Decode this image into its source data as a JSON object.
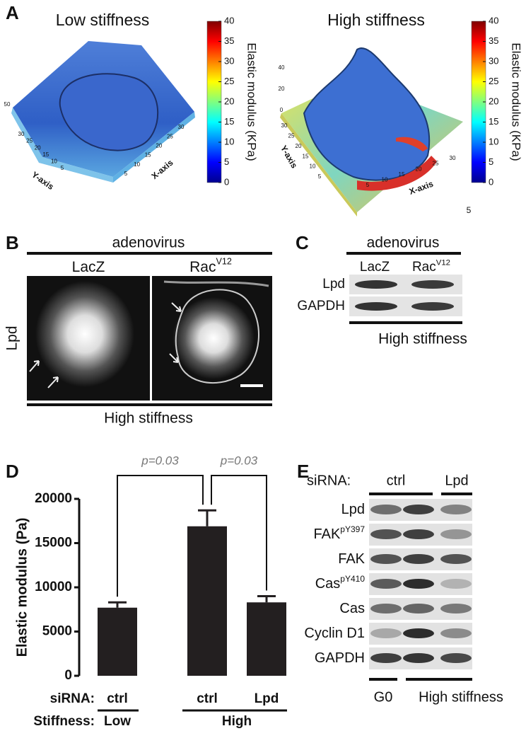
{
  "panel_a": {
    "label": "A",
    "left": {
      "title": "Low stiffness",
      "z_ticks": [
        50
      ],
      "y_ticks": [
        30,
        25,
        20,
        15,
        10,
        5
      ],
      "x_ticks": [
        30,
        25,
        20,
        15,
        10,
        5
      ],
      "y_axis": "Y-axis",
      "x_axis": "X-axis"
    },
    "right": {
      "title": "High stiffness",
      "z_ticks": [
        40,
        20,
        0
      ],
      "y_ticks": [
        30,
        25,
        20,
        15,
        10,
        5
      ],
      "x_ticks": [
        5,
        10,
        15,
        20,
        25,
        30
      ],
      "y_axis": "Y-axis",
      "x_axis": "X-axis"
    },
    "colorbar": {
      "label": "Elastic modulus (KPa)",
      "lim": [
        0,
        40
      ],
      "ticks": [
        0,
        5,
        10,
        15,
        20,
        25,
        30,
        35,
        40
      ]
    },
    "note": "5"
  },
  "panel_b": {
    "label": "B",
    "header": "adenovirus",
    "columns": [
      {
        "text": "LacZ"
      },
      {
        "text": "Rac",
        "sup": "V12"
      }
    ],
    "row_label": "Lpd",
    "footer": "High stiffness"
  },
  "panel_c": {
    "label": "C",
    "header": "adenovirus",
    "columns": [
      {
        "text": "LacZ"
      },
      {
        "text": "Rac",
        "sup": "V12"
      }
    ],
    "rows": [
      "Lpd",
      "GAPDH"
    ],
    "footer": "High stiffness"
  },
  "chart_data": {
    "type": "bar",
    "label": "D",
    "ylabel": "Elastic modulus (Pa)",
    "categories": [
      "ctrl",
      "ctrl",
      "Lpd"
    ],
    "category_label": "siRNA:",
    "groups": {
      "label": "Stiffness:",
      "names": [
        "Low",
        "High"
      ]
    },
    "values": [
      7700,
      16900,
      8300
    ],
    "errors": [
      600,
      1800,
      700
    ],
    "color": "#231f20",
    "ylim": [
      0,
      20000
    ],
    "yticks": [
      0,
      5000,
      10000,
      15000,
      20000
    ],
    "annotations": [
      "p=0.03",
      "p=0.03"
    ]
  },
  "panel_e": {
    "label": "E",
    "header_label": "siRNA:",
    "header_groups": [
      "ctrl",
      "Lpd"
    ],
    "rows": [
      {
        "text": "Lpd"
      },
      {
        "text": "FAK",
        "sup": "pY397"
      },
      {
        "text": "FAK"
      },
      {
        "text": "Cas",
        "sup": "pY410"
      },
      {
        "text": "Cas"
      },
      {
        "text": "Cyclin D1"
      },
      {
        "text": "GAPDH"
      }
    ],
    "footer_groups": [
      "G0",
      "High stiffness"
    ]
  }
}
